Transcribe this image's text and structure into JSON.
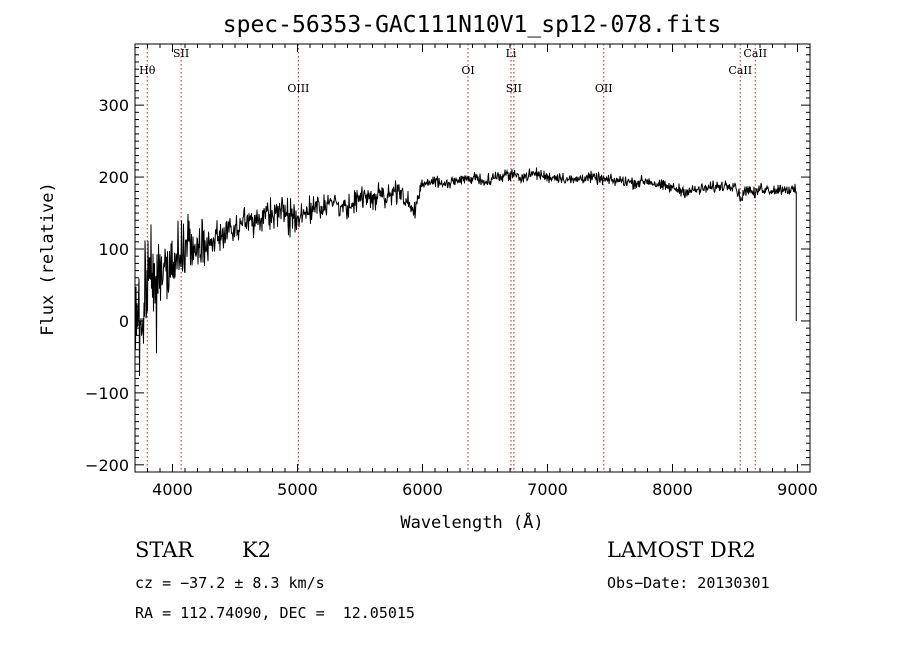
{
  "chart_data": {
    "type": "line",
    "title": "spec-56353-GAC111N10V1_sp12-078.fits",
    "xlabel": "Wavelength (Å)",
    "ylabel": "Flux (relative)",
    "xlim": [
      3700,
      9100
    ],
    "ylim": [
      -210,
      385
    ],
    "xticks": [
      4000,
      5000,
      6000,
      7000,
      8000,
      9000
    ],
    "yticks": [
      -200,
      -100,
      0,
      100,
      200,
      300
    ],
    "grid": false,
    "line_color": "#000000",
    "marker_color": "#a52a2a",
    "spectrum_anchors": {
      "x": [
        3700,
        3720,
        3740,
        3760,
        3780,
        3800,
        3850,
        3900,
        3950,
        4000,
        4100,
        4200,
        4300,
        4400,
        4500,
        4600,
        4700,
        4800,
        4900,
        5000,
        5100,
        5200,
        5300,
        5400,
        5500,
        5600,
        5700,
        5800,
        5900,
        5950,
        6000,
        6100,
        6200,
        6300,
        6400,
        6500,
        6600,
        6700,
        6800,
        6900,
        7000,
        7100,
        7200,
        7300,
        7400,
        7500,
        7600,
        7700,
        7800,
        7900,
        8000,
        8100,
        8200,
        8300,
        8400,
        8500,
        8542,
        8600,
        8662,
        8700,
        8800,
        8900,
        8990
      ],
      "y": [
        0,
        20,
        -15,
        30,
        40,
        50,
        60,
        55,
        70,
        80,
        95,
        100,
        110,
        120,
        130,
        140,
        145,
        150,
        150,
        145,
        155,
        160,
        165,
        160,
        170,
        170,
        175,
        180,
        160,
        155,
        190,
        195,
        190,
        195,
        200,
        195,
        200,
        205,
        200,
        205,
        200,
        200,
        195,
        200,
        198,
        195,
        195,
        192,
        195,
        188,
        185,
        180,
        182,
        185,
        188,
        190,
        170,
        185,
        175,
        185,
        182,
        184,
        180
      ]
    },
    "lines": [
      {
        "label": "Hθ",
        "x": 3798,
        "row": 1
      },
      {
        "label": "SII",
        "x": 4069,
        "row": 0
      },
      {
        "label": "OIII",
        "x": 5007,
        "row": 2
      },
      {
        "label": "OI",
        "x": 6364,
        "row": 1
      },
      {
        "label": "Li",
        "x": 6708,
        "row": 0
      },
      {
        "label": "SII",
        "x": 6731,
        "row": 2
      },
      {
        "label": "OII",
        "x": 7450,
        "row": 2
      },
      {
        "label": "CaII",
        "x": 8542,
        "row": 1
      },
      {
        "label": "CaII",
        "x": 8662,
        "row": 0
      }
    ]
  },
  "info": {
    "object_class": "STAR",
    "subclass": "K2",
    "survey": "LAMOST DR2",
    "cz": "cz = −37.2 ± 8.3 km/s",
    "obs_date": "Obs−Date: 20130301",
    "coords": "RA = 112.74090, DEC =  12.05015"
  }
}
